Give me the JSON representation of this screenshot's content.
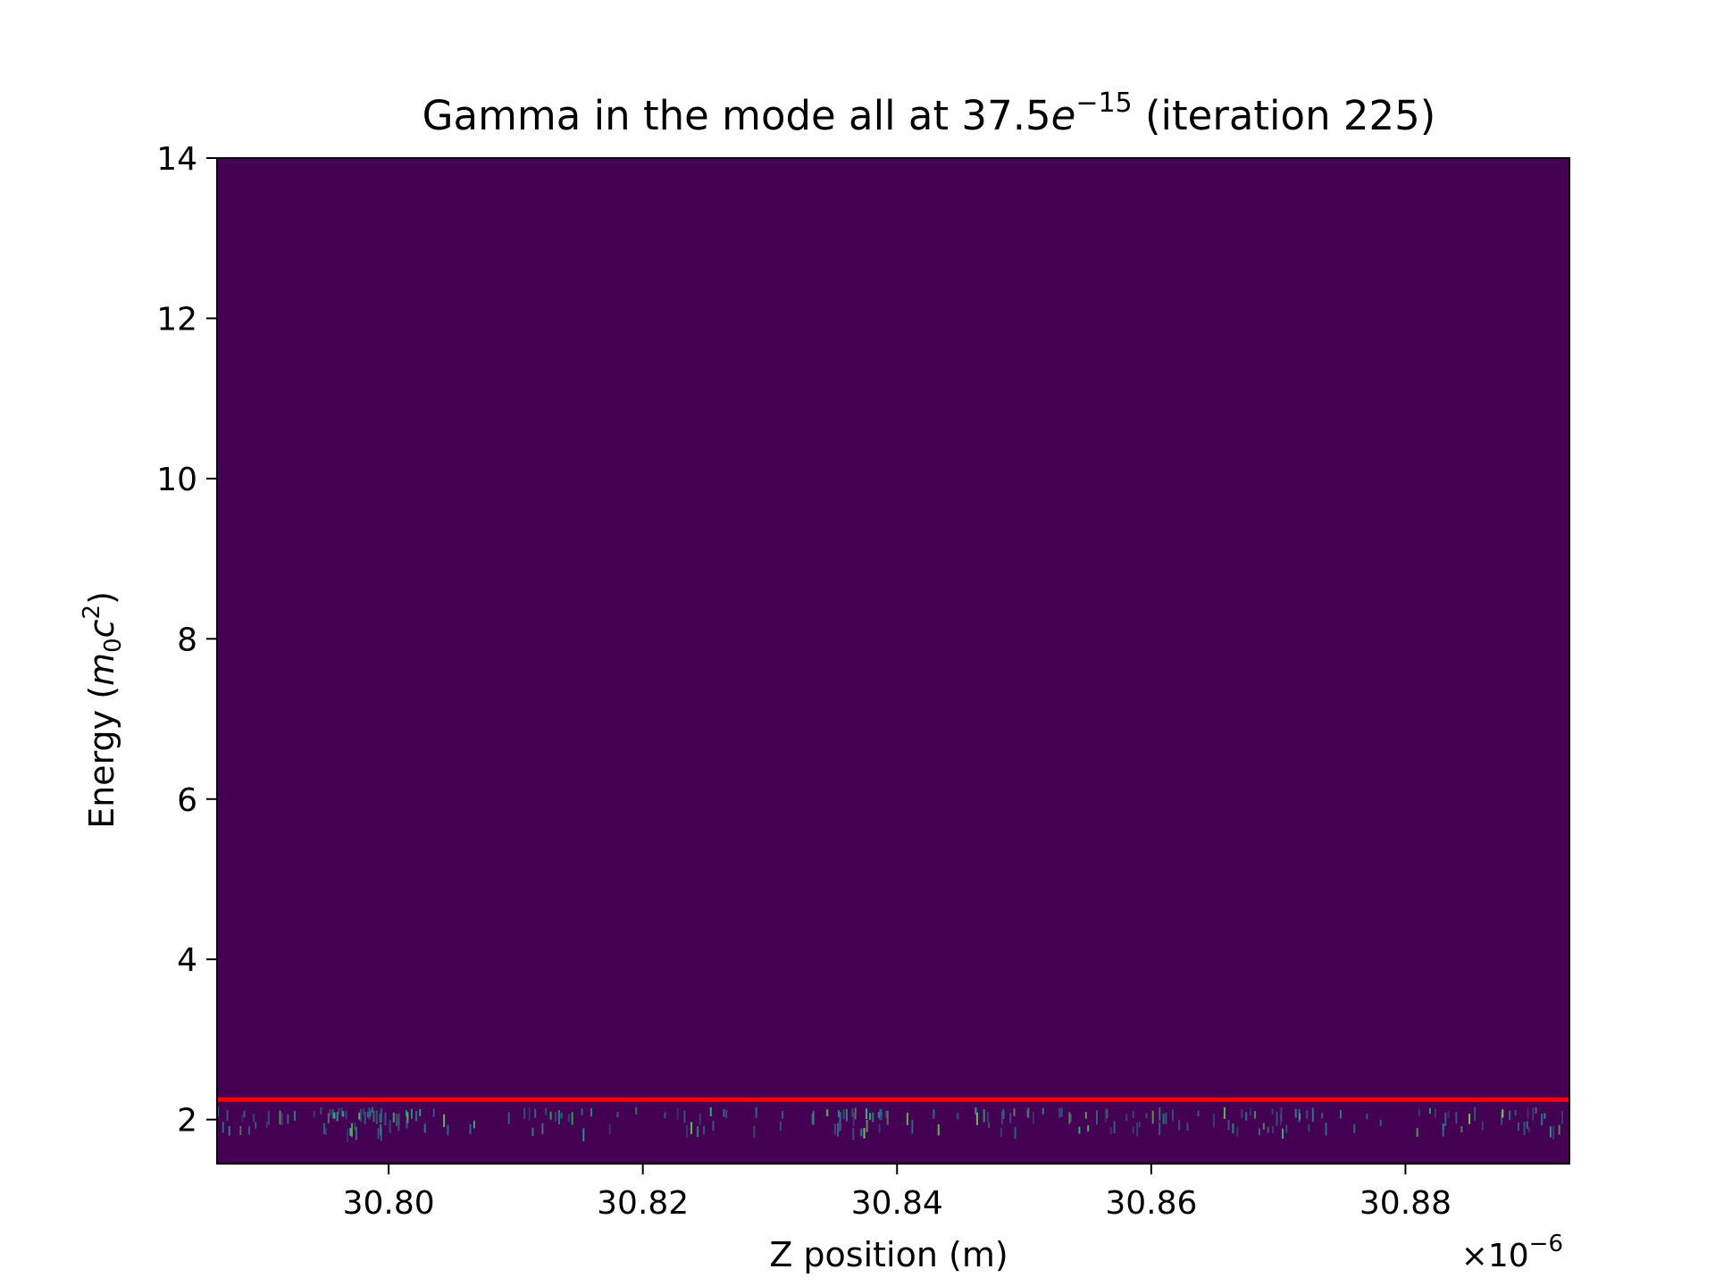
{
  "chart_data": {
    "type": "heatmap",
    "title_prefix": "Gamma in the mode all at 37.5",
    "title_base": "e",
    "title_exponent": "−15",
    "title_suffix": " (iteration 225)",
    "xlabel": "Z position (m)",
    "ylabel_prefix": "Energy (",
    "ylabel_m": "m",
    "ylabel_sub": "0",
    "ylabel_c": "c",
    "ylabel_sup": "2",
    "ylabel_suffix": ")",
    "x_offset_prefix": "×10",
    "x_offset_exponent": "−6",
    "xlim": [
      30.7865,
      30.8929
    ],
    "ylim": [
      1.45,
      14
    ],
    "x_ticks": [
      30.8,
      30.82,
      30.84,
      30.86,
      30.88
    ],
    "x_tick_labels": [
      "30.80",
      "30.82",
      "30.84",
      "30.86",
      "30.88"
    ],
    "y_ticks": [
      2,
      4,
      6,
      8,
      10,
      12,
      14
    ],
    "y_tick_labels": [
      "2",
      "4",
      "6",
      "8",
      "10",
      "12",
      "14"
    ],
    "reference_line": {
      "y": 2.25,
      "color": "#ff0000"
    },
    "colormap": "viridis",
    "background_color": "#440154",
    "grid": false,
    "particle_band": {
      "y_min": 1.9,
      "y_max": 2.2
    }
  }
}
